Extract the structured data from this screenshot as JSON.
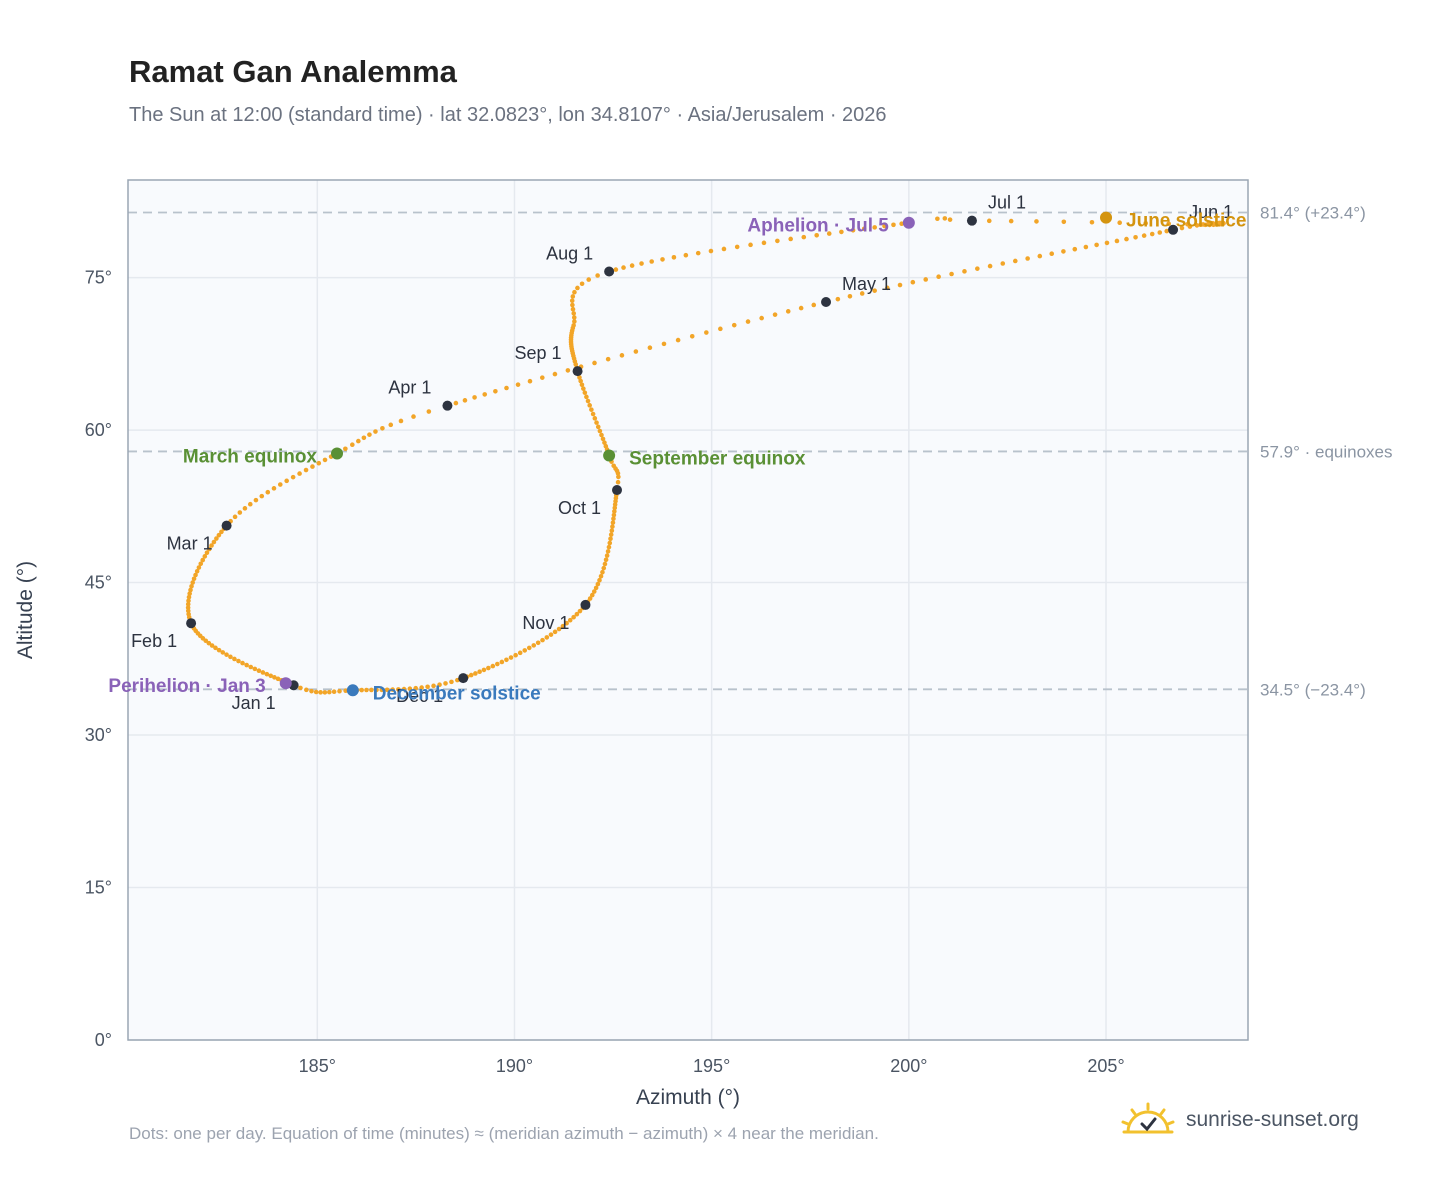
{
  "title": "Ramat Gan Analemma",
  "subtitle": "The Sun at 12:00 (standard time) · lat 32.0823°, lon 34.8107° · Asia/Jerusalem · 2026",
  "footnote": "Dots: one per day. Equation of time (minutes) ≈ (meridian azimuth − azimuth) × 4 near the meridian.",
  "brand": {
    "text": "sunrise-sunset.org",
    "icon": "sun-check-icon"
  },
  "colors": {
    "curve": "#f2a528",
    "month_marker": "#2d3340",
    "equinox": "#5a9035",
    "june_solstice": "#d4940f",
    "december_solstice": "#3a7abd",
    "perihelion_aphelion": "#8a62b8",
    "reference_line": "#b8c2cc",
    "plot_bg": "#f8fafd",
    "grid": "#e5e9ef",
    "frame": "#9aa6b4"
  },
  "chart_data": {
    "type": "scatter",
    "xlabel": "Azimuth (°)",
    "ylabel": "Altitude (°)",
    "xlim": [
      180.2,
      208.6
    ],
    "ylim": [
      0,
      84.6
    ],
    "x_ticks": [
      "185°",
      "190°",
      "195°",
      "200°",
      "205°"
    ],
    "x_tick_values": [
      185,
      190,
      195,
      200,
      205
    ],
    "y_ticks": [
      "0°",
      "15°",
      "30°",
      "45°",
      "60°",
      "75°"
    ],
    "y_tick_values": [
      0,
      15,
      30,
      45,
      60,
      75
    ],
    "grid": true,
    "reference_lines": [
      {
        "y": 81.4,
        "label": "81.4° (+23.4°)"
      },
      {
        "y": 57.9,
        "label": "57.9° · equinoxes"
      },
      {
        "y": 34.5,
        "label": "34.5° (−23.4°)"
      }
    ],
    "month_points": [
      {
        "label": "Jan 1",
        "azimuth": 184.4,
        "altitude": 34.9
      },
      {
        "label": "Feb 1",
        "azimuth": 181.8,
        "altitude": 41.0
      },
      {
        "label": "Mar 1",
        "azimuth": 182.7,
        "altitude": 50.6
      },
      {
        "label": "Apr 1",
        "azimuth": 188.3,
        "altitude": 62.4
      },
      {
        "label": "May 1",
        "azimuth": 197.9,
        "altitude": 72.6
      },
      {
        "label": "Jun 1",
        "azimuth": 206.7,
        "altitude": 79.7
      },
      {
        "label": "Jul 1",
        "azimuth": 201.6,
        "altitude": 80.6
      },
      {
        "label": "Aug 1",
        "azimuth": 192.4,
        "altitude": 75.6
      },
      {
        "label": "Sep 1",
        "azimuth": 191.6,
        "altitude": 65.8
      },
      {
        "label": "Oct 1",
        "azimuth": 192.6,
        "altitude": 54.1
      },
      {
        "label": "Nov 1",
        "azimuth": 191.8,
        "altitude": 42.8
      },
      {
        "label": "Dec 1",
        "azimuth": 188.7,
        "altitude": 35.6
      }
    ],
    "special_points": [
      {
        "label": "March equinox",
        "azimuth": 185.5,
        "altitude": 57.7,
        "kind": "equinox"
      },
      {
        "label": "June solstice",
        "azimuth": 205.0,
        "altitude": 80.9,
        "kind": "june_solstice"
      },
      {
        "label": "September equinox",
        "azimuth": 192.4,
        "altitude": 57.5,
        "kind": "equinox"
      },
      {
        "label": "December solstice",
        "azimuth": 185.9,
        "altitude": 34.4,
        "kind": "december_solstice"
      },
      {
        "label": "Perihelion · Jan 3",
        "azimuth": 184.2,
        "altitude": 35.1,
        "kind": "apsis"
      },
      {
        "label": "Aphelion · Jul 5",
        "azimuth": 200.0,
        "altitude": 80.4,
        "kind": "apsis"
      }
    ]
  }
}
